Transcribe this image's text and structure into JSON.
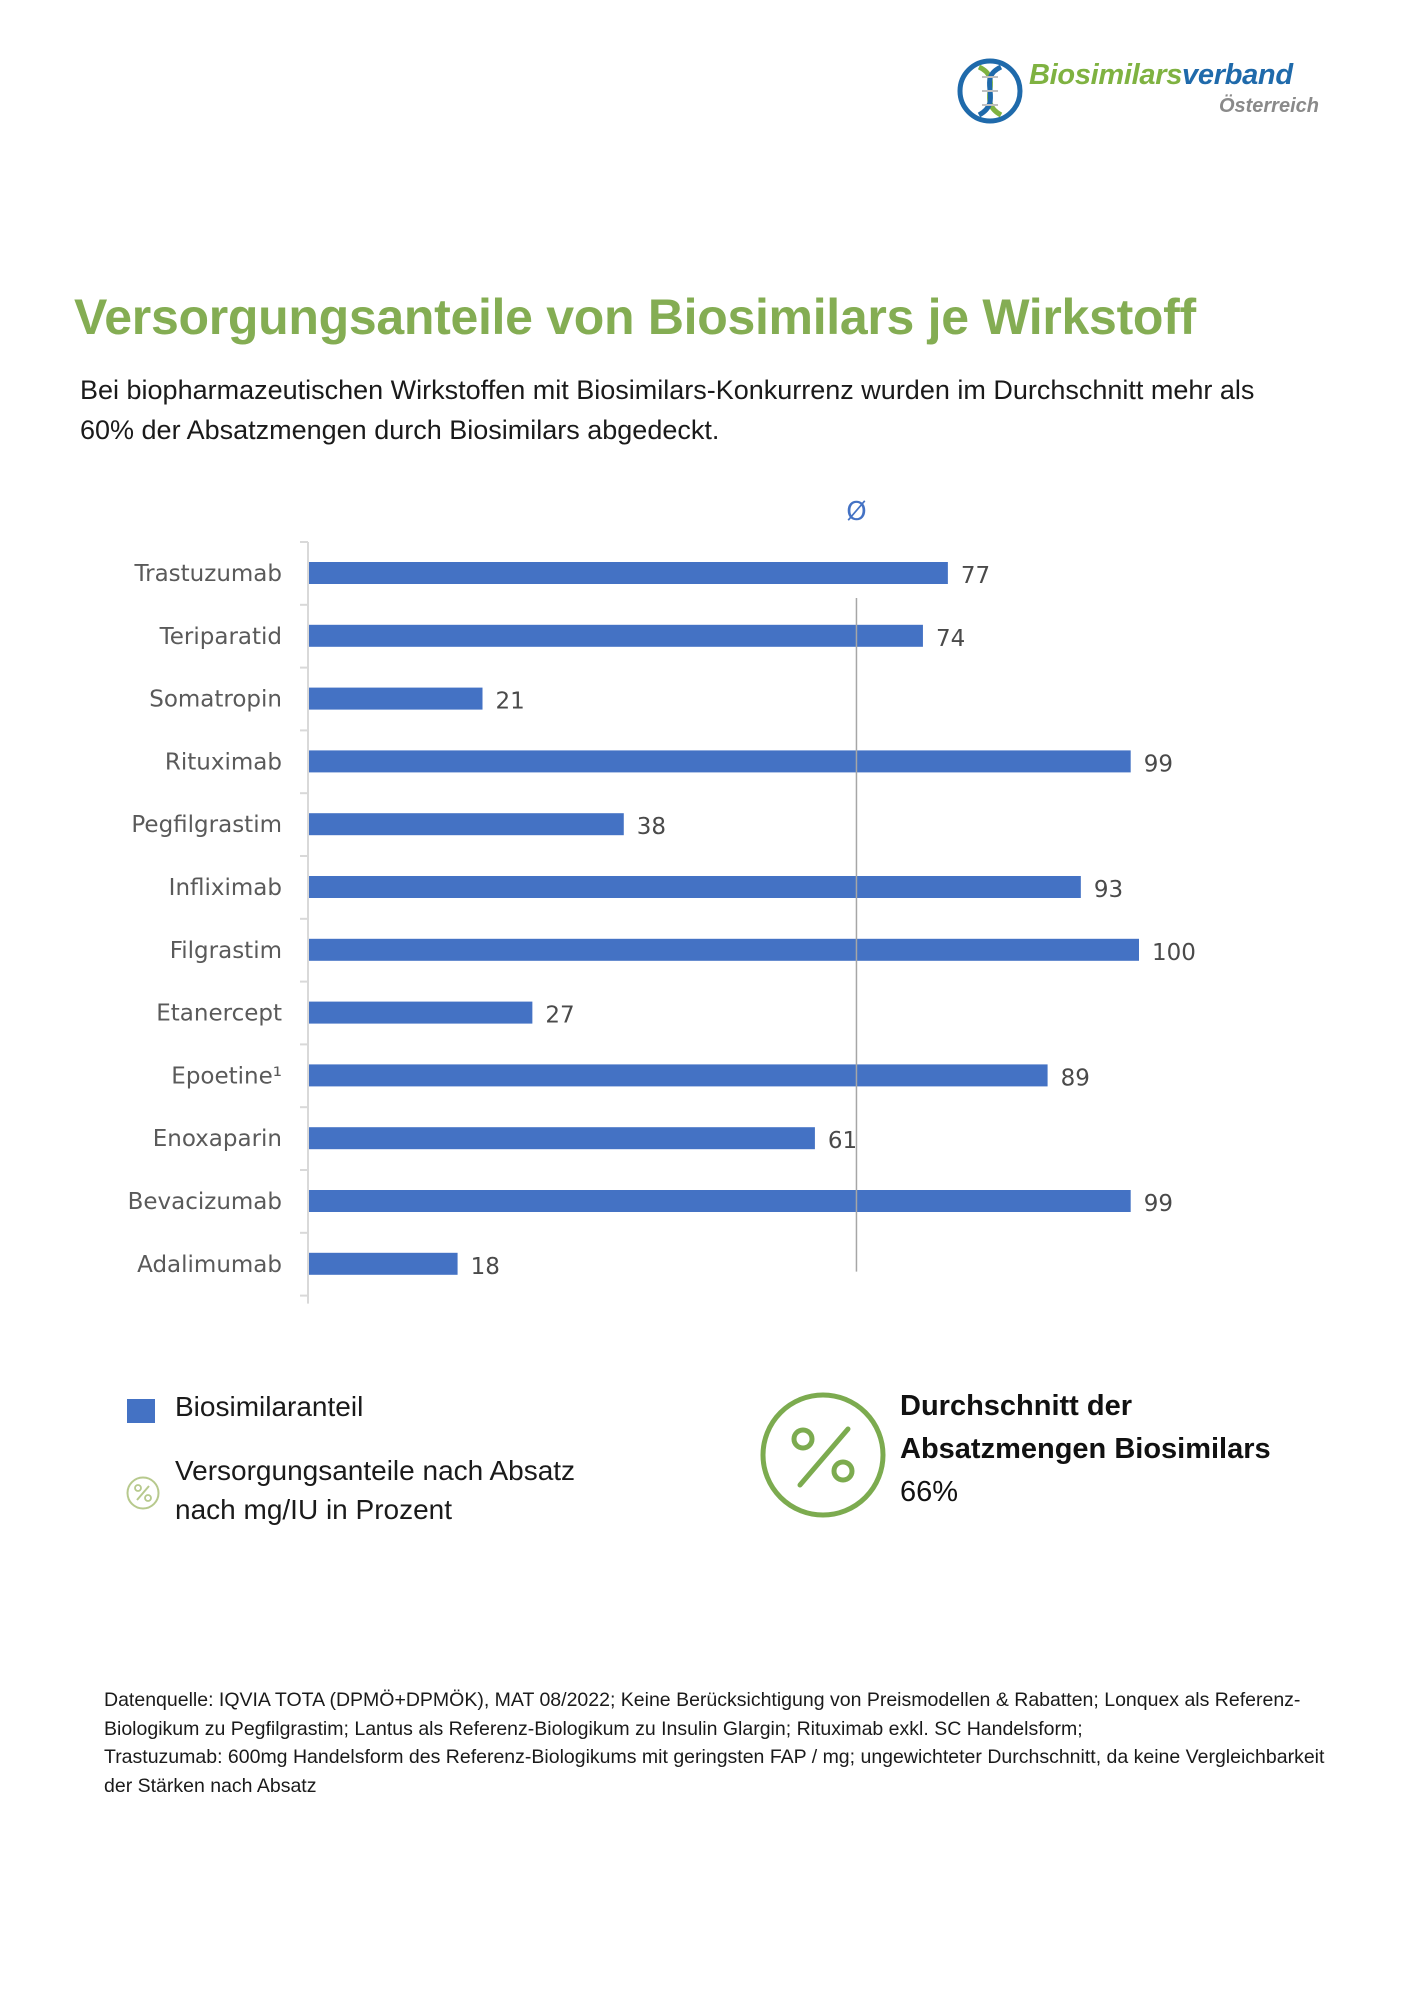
{
  "logo": {
    "name_part_green": "Biosimilars",
    "name_part_blue": "verband",
    "subtitle": "Österreich",
    "colors": {
      "green": "#7fb241",
      "blue": "#1f6aab"
    }
  },
  "header": {
    "title": "Versorgungsanteile von Biosimilars je Wirkstoff",
    "subtitle": "Bei biopharmazeutischen Wirkstoffen mit Biosimilars-Konkurrenz wurden im Durchschnitt mehr als 60% der Absatzmengen durch Biosimilars abgedeckt."
  },
  "chart_data": {
    "type": "bar",
    "orientation": "horizontal",
    "title": "Versorgungsanteile von Biosimilars je Wirkstoff",
    "xlabel": "",
    "ylabel": "",
    "xlim": [
      0,
      100
    ],
    "grid": false,
    "categories": [
      "Trastuzumab",
      "Teriparatid",
      "Somatropin",
      "Rituximab",
      "Pegfilgrastim",
      "Infliximab",
      "Filgrastim",
      "Etanercept",
      "Epoetine¹",
      "Enoxaparin",
      "Bevacizumab",
      "Adalimumab"
    ],
    "series": [
      {
        "name": "Biosimilaranteil",
        "color": "#4472c4",
        "values": [
          77,
          74,
          21,
          99,
          38,
          93,
          100,
          27,
          89,
          61,
          99,
          18
        ]
      }
    ],
    "average_line": {
      "value": 66,
      "label": "Ø",
      "color": "#a6a6a6"
    },
    "data_labels": true,
    "legend_position": "bottom-left"
  },
  "legend": {
    "items": [
      {
        "label": "Biosimilaranteil",
        "icon": "blue-square"
      },
      {
        "label": "Versorgungsanteile nach Absatz nach mg/IU in Prozent",
        "icon": "percent-circle-icon"
      }
    ]
  },
  "average": {
    "title": "Durchschnitt der Absatzmengen Biosimilars",
    "value": "66%",
    "icon": "percent-circle-icon",
    "color": "#7cab4f"
  },
  "footnote": {
    "lines": [
      "Datenquelle: IQVIA TOTA (DPMÖ+DPMÖK), MAT 08/2022; Keine Berücksichtigung von Preismodellen & Rabatten; Lonquex als Referenz-Biologikum zu Pegfilgrastim; Lantus als Referenz-Biologikum zu Insulin Glargin; Rituximab exkl. SC Handelsform;",
      "Trastuzumab: 600mg Handelsform des Referenz-Biologikums mit geringsten FAP / mg; ungewichteter Durchschnitt, da keine Vergleichbarkeit der Stärken nach Absatz"
    ]
  }
}
